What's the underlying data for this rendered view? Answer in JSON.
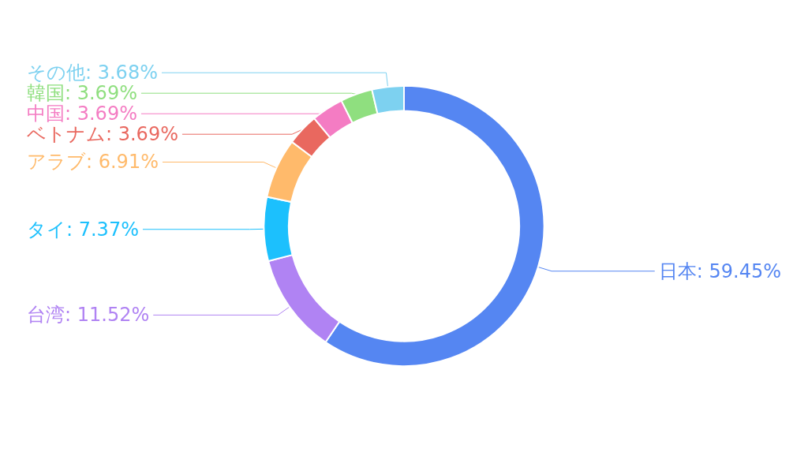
{
  "chart_data": {
    "type": "donut",
    "categories": [
      "日本",
      "台湾",
      "タイ",
      "アラブ",
      "ベトナム",
      "中国",
      "韓国",
      "その他"
    ],
    "values": [
      59.45,
      11.52,
      7.37,
      6.91,
      3.69,
      3.69,
      3.69,
      3.68
    ],
    "value_labels": [
      "59.45%",
      "11.52%",
      "7.37%",
      "6.91%",
      "3.69%",
      "3.69%",
      "3.69%",
      "3.68%"
    ],
    "colors": [
      "#5586f2",
      "#b083f3",
      "#1cc0fd",
      "#ffba6b",
      "#e9685f",
      "#f47cc3",
      "#8fdf7f",
      "#7dd1f0"
    ],
    "legend": false
  }
}
